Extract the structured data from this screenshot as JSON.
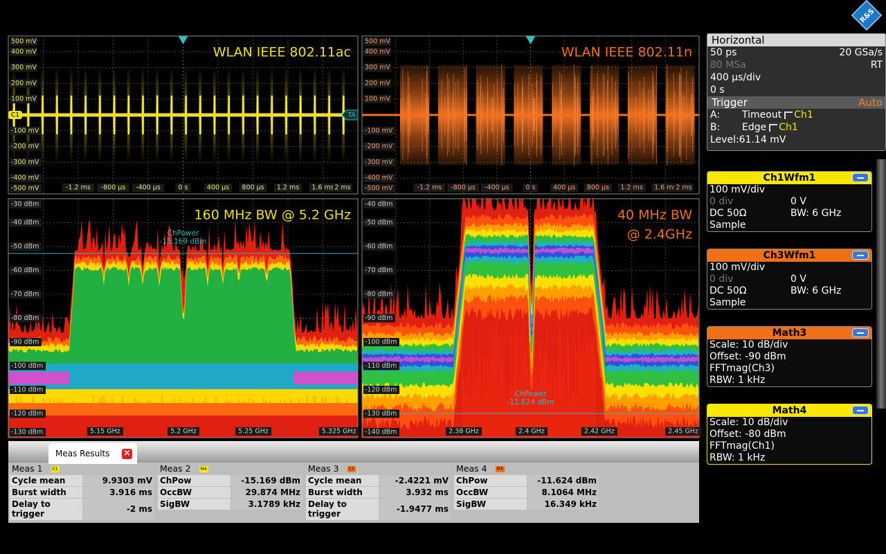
{
  "logo": "R&S",
  "panels": [
    {
      "title": [
        "WLAN IEEE 802.11ac"
      ],
      "color": "#f0e020",
      "marker_left": "C1",
      "marker_right": "TA",
      "y_labels": [
        "500 mV",
        "400 mV",
        "300 mV",
        "200 mV",
        "100 mV",
        "-100 mV",
        "-200 mV",
        "-300 mV",
        "-400 mV",
        "-500 mV"
      ],
      "x_labels": [
        "-1.2 ms",
        "-800 µs",
        "-400 µs",
        "0 s",
        "400 µs",
        "800 µs",
        "1.2 ms",
        "1.6 ms",
        "2 ms"
      ]
    },
    {
      "title": [
        "WLAN IEEE 802.11n"
      ],
      "color": "#f07020",
      "y_labels": [
        "500 mV",
        "400 mV",
        "300 mV",
        "200 mV",
        "100 mV",
        "-100 mV",
        "-200 mV",
        "-300 mV",
        "-400 mV",
        "-500 mV"
      ],
      "x_labels": [
        "-1.2 ms",
        "-800 µs",
        "-400 µs",
        "0 s",
        "400 µs",
        "800 µs",
        "1.2 ms",
        "1.6 ms",
        "2 ms"
      ]
    },
    {
      "title": [
        "160 MHz BW @ 5.2 GHz"
      ],
      "color": "#f0e020",
      "annotation": [
        "ChPower",
        "-15.169 dBm"
      ],
      "y_labels": [
        "-30 dBm",
        "-40 dBm",
        "-50 dBm",
        "-60 dBm",
        "-70 dBm",
        "-80 dBm",
        "-90 dBm",
        "-100 dBm",
        "-110 dBm",
        "-120 dBm",
        "-130 dBm"
      ],
      "x_labels": [
        "5.15 GHz",
        "5.2 GHz",
        "5.25 GHz",
        "5.325 GHz"
      ]
    },
    {
      "title": [
        "40 MHz BW",
        "@ 2.4GHz"
      ],
      "color": "#f07020",
      "annotation": [
        "ChPower",
        "-11.624 dBm"
      ],
      "y_labels": [
        "-40 dBm",
        "-50 dBm",
        "-60 dBm",
        "-70 dBm",
        "-80 dBm",
        "-90 dBm",
        "-100 dBm",
        "-110 dBm",
        "-120 dBm",
        "-130 dBm",
        "-140 dBm"
      ],
      "x_labels": [
        "2.38 GHz",
        "2.4 GHz",
        "2.42 GHz",
        "2.45 GHz"
      ]
    }
  ],
  "horizontal": {
    "title": "Horizontal",
    "rows": [
      [
        "50 ps",
        "20 GSa/s"
      ],
      [
        "80 MSa",
        "RT"
      ],
      [
        "400 µs/div"
      ],
      [
        "0 s"
      ]
    ]
  },
  "trigger": {
    "title": "Trigger",
    "mode": "Auto",
    "rows": [
      [
        "A:",
        "Timeout",
        "Ch1"
      ],
      [
        "B:",
        "Edge",
        "Ch1"
      ]
    ],
    "level": "Level:61.14 mV"
  },
  "channels": [
    {
      "title": "Ch1Wfm1",
      "color": "#f8e800",
      "lines": [
        [
          "100 mV/div"
        ],
        [
          "0 div",
          "0 V"
        ],
        [
          "DC 50Ω",
          "BW: 6 GHz"
        ],
        [
          "Sample"
        ]
      ]
    },
    {
      "title": "Ch3Wfm1",
      "color": "#f07018",
      "lines": [
        [
          "100 mV/div"
        ],
        [
          "0 div",
          "0 V"
        ],
        [
          "DC 50Ω",
          "BW: 6 GHz"
        ],
        [
          "Sample"
        ]
      ]
    },
    {
      "title": "Math3",
      "color": "#f07018",
      "lines": [
        [
          "Scale:  10 dB/div"
        ],
        [
          "Offset: -90 dBm"
        ],
        [
          "FFTmag(Ch3)"
        ],
        [
          "RBW:  1 kHz"
        ]
      ]
    },
    {
      "title": "Math4",
      "color": "#f8e800",
      "lines": [
        [
          "Scale:  10 dB/div"
        ],
        [
          "Offset: -80 dBm"
        ],
        [
          "FFTmag(Ch1)"
        ],
        [
          "RBW:  1 kHz"
        ]
      ]
    }
  ],
  "meas": {
    "tab": "Meas Results",
    "columns": [
      {
        "title": "Meas 1",
        "badge": "C1",
        "badge_color": "#f8e800",
        "rows": [
          [
            "Cycle mean",
            "9.9303 mV"
          ],
          [
            "Burst width",
            "3.916 ms"
          ],
          [
            "Delay to trigger",
            "-2 ms"
          ]
        ]
      },
      {
        "title": "Meas 2",
        "badge": "M4",
        "badge_color": "#f8e800",
        "rows": [
          [
            "ChPow",
            "-15.169 dBm"
          ],
          [
            "OccBW",
            "29.874 MHz"
          ],
          [
            "SigBW",
            "3.1789 kHz"
          ]
        ]
      },
      {
        "title": "Meas 3",
        "badge": "C3",
        "badge_color": "#f07018",
        "rows": [
          [
            "Cycle mean",
            "-2.4221 mV"
          ],
          [
            "Burst width",
            "3.932 ms"
          ],
          [
            "Delay to trigger",
            "-1.9477 ms"
          ]
        ]
      },
      {
        "title": "Meas 4",
        "badge": "M3",
        "badge_color": "#f07018",
        "rows": [
          [
            "ChPow",
            "-11.624 dBm"
          ],
          [
            "OccBW",
            "8.1064 MHz"
          ],
          [
            "SigBW",
            "16.349 kHz"
          ]
        ]
      }
    ]
  }
}
